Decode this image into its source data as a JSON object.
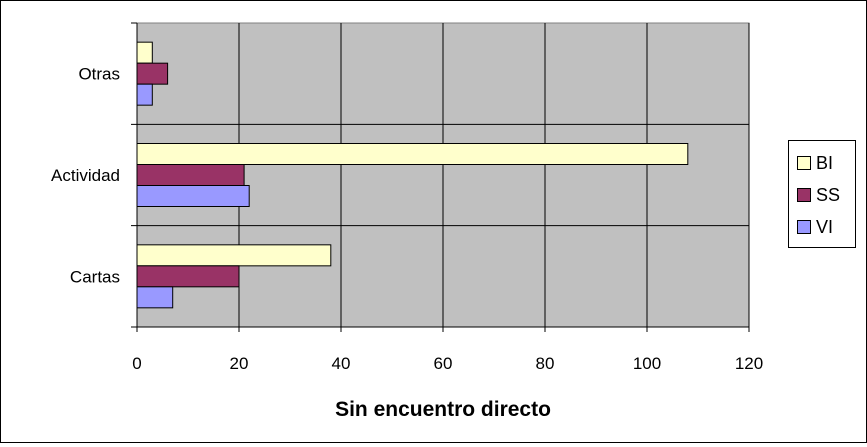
{
  "chart_data": {
    "type": "bar",
    "orientation": "horizontal",
    "categories": [
      "Otras",
      "Actividad",
      "Cartas"
    ],
    "series": [
      {
        "name": "BI",
        "values": [
          3,
          108,
          38
        ],
        "color": "#ffffcc"
      },
      {
        "name": "SS",
        "values": [
          6,
          21,
          20
        ],
        "color": "#993366"
      },
      {
        "name": "VI",
        "values": [
          3,
          22,
          7
        ],
        "color": "#9999ff"
      }
    ],
    "xlabel": "Sin encuentro directo",
    "ylabel": "",
    "xlim": [
      0,
      120
    ],
    "xticks": [
      "0",
      "20",
      "40",
      "60",
      "80",
      "100",
      "120"
    ],
    "grid": true,
    "plot_background": "#c0c0c0",
    "legend_position": "right"
  }
}
